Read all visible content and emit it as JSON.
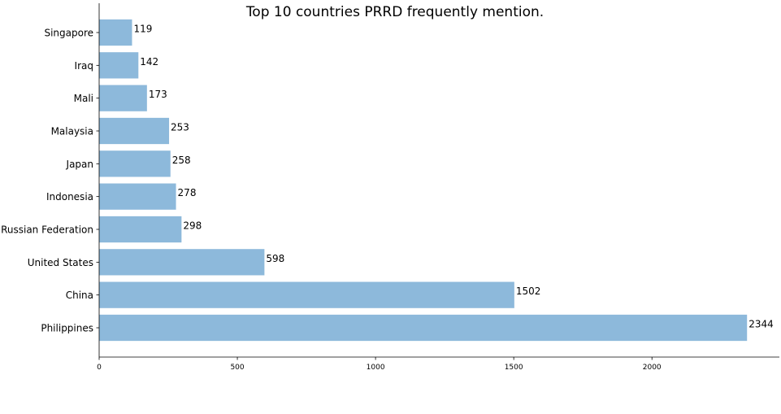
{
  "chart_data": {
    "type": "bar",
    "orientation": "horizontal",
    "title": "Top 10 countries PRRD frequently mention.",
    "xlabel": "",
    "ylabel": "",
    "categories": [
      "Singapore",
      "Iraq",
      "Mali",
      "Malaysia",
      "Japan",
      "Indonesia",
      "Russian Federation",
      "United States",
      "China",
      "Philippines"
    ],
    "values": [
      119,
      142,
      173,
      253,
      258,
      278,
      298,
      598,
      1502,
      2344
    ],
    "x_ticks": [
      "0",
      "500",
      "1000",
      "1500",
      "2000"
    ],
    "xlim": [
      0,
      2461
    ],
    "grid": false,
    "bar_color": "#8DB9DB"
  }
}
